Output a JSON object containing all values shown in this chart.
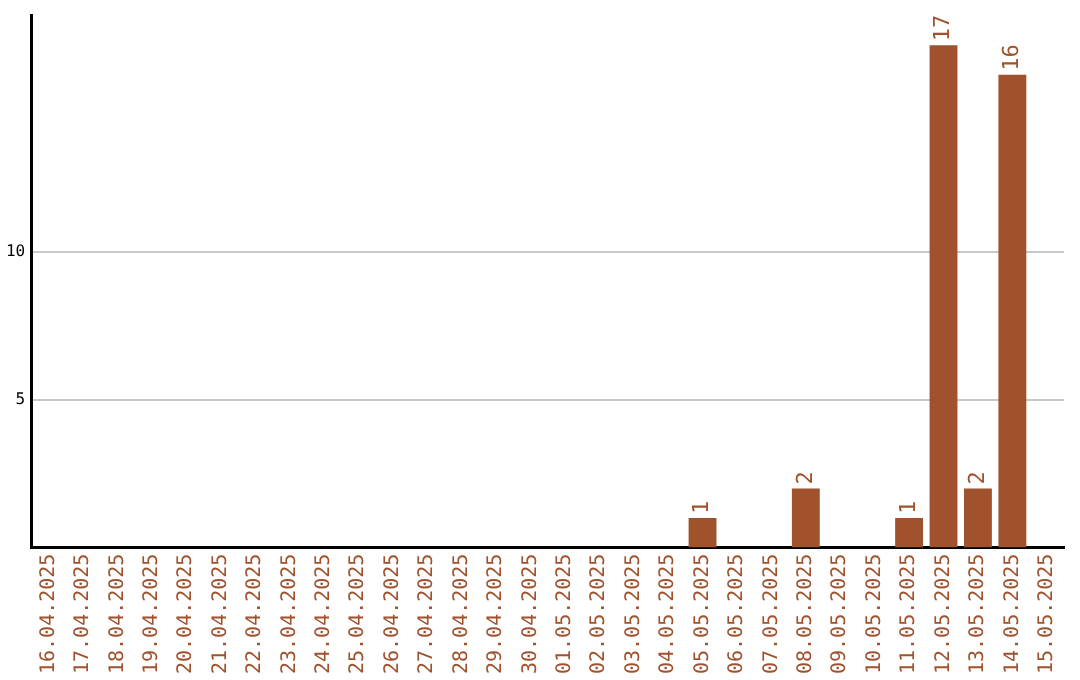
{
  "chart_data": {
    "type": "bar",
    "categories": [
      "16.04.2025",
      "17.04.2025",
      "18.04.2025",
      "19.04.2025",
      "20.04.2025",
      "21.04.2025",
      "22.04.2025",
      "23.04.2025",
      "24.04.2025",
      "25.04.2025",
      "26.04.2025",
      "27.04.2025",
      "28.04.2025",
      "29.04.2025",
      "30.04.2025",
      "01.05.2025",
      "02.05.2025",
      "03.05.2025",
      "04.05.2025",
      "05.05.2025",
      "06.05.2025",
      "07.05.2025",
      "08.05.2025",
      "09.05.2025",
      "10.05.2025",
      "11.05.2025",
      "12.05.2025",
      "13.05.2025",
      "14.05.2025",
      "15.05.2025"
    ],
    "values": [
      0,
      0,
      0,
      0,
      0,
      0,
      0,
      0,
      0,
      0,
      0,
      0,
      0,
      0,
      0,
      0,
      0,
      0,
      0,
      1,
      0,
      0,
      2,
      0,
      0,
      1,
      17,
      2,
      16,
      0
    ],
    "value_labels": [
      null,
      null,
      null,
      null,
      null,
      null,
      null,
      null,
      null,
      null,
      null,
      null,
      null,
      null,
      null,
      null,
      null,
      null,
      null,
      "1",
      null,
      null,
      "2",
      null,
      null,
      "1",
      "17",
      "2",
      "16",
      null
    ],
    "color": "#a0522d",
    "ylim": [
      0,
      18
    ],
    "yticks": [
      5,
      10
    ],
    "grid": "y",
    "legend": false
  }
}
